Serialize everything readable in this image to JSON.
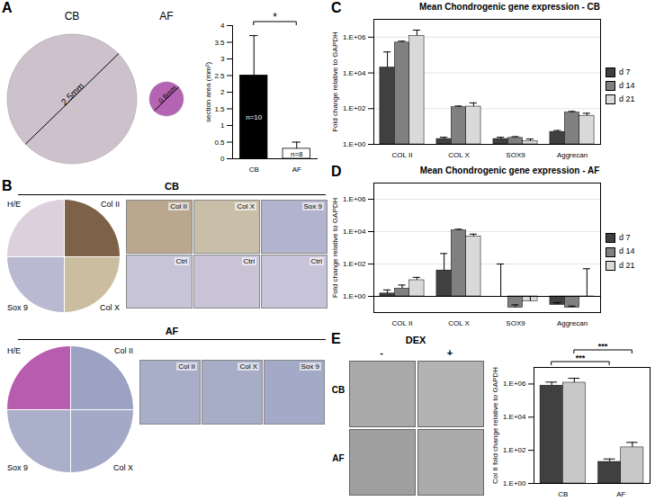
{
  "chart_data": [
    {
      "type": "bar",
      "panel": "A",
      "y_label": "section area (mm²)",
      "categories": [
        "CB",
        "AF"
      ],
      "values": [
        2.5,
        0.3
      ],
      "errors": [
        1.2,
        0.2
      ],
      "colors": [
        "#000000",
        "#ffffff"
      ],
      "bar_labels": [
        "n=10",
        "n=8"
      ],
      "annotations": [
        "*"
      ],
      "ylim": [
        0,
        4
      ],
      "yticks": [
        0,
        0.5,
        1,
        1.5,
        2,
        2.5,
        3,
        3.5,
        4
      ]
    },
    {
      "type": "bar",
      "panel": "C",
      "title": "Mean Chondrogenic gene expression - CB",
      "y_label": "Fold change relative to GAPDH",
      "log": "y",
      "grid": true,
      "legend": "right",
      "categories": [
        "COL II",
        "COL X",
        "SOX9",
        "Aggrecan"
      ],
      "series": [
        {
          "name": "d 7",
          "color": "#404040",
          "values": [
            20000,
            2,
            2,
            5
          ],
          "errors": [
            130000,
            0.5,
            0.5,
            1
          ]
        },
        {
          "name": "d 14",
          "color": "#808080",
          "values": [
            500000,
            120,
            2.3,
            60
          ],
          "errors": [
            100000,
            20,
            0.4,
            10
          ]
        },
        {
          "name": "d 21",
          "color": "#d9d9d9",
          "values": [
            1200000,
            130,
            1.5,
            40
          ],
          "errors": [
            1300000,
            80,
            0.5,
            15
          ]
        }
      ],
      "ylim": [
        1,
        10000000
      ],
      "yticks": [
        {
          "value": 1,
          "label": "1.E+00"
        },
        {
          "value": 100,
          "label": "1.E+02"
        },
        {
          "value": 10000,
          "label": "1.E+04"
        },
        {
          "value": 1000000,
          "label": "1.E+06"
        }
      ]
    },
    {
      "type": "bar",
      "panel": "D",
      "title": "Mean Chondrogenic gene expression - AF",
      "y_label": "Fold change relative to GAPDH",
      "log": "y",
      "grid": true,
      "legend": "right",
      "categories": [
        "COL II",
        "COL X",
        "SOX9",
        "Aggrecan"
      ],
      "series": [
        {
          "name": "d 7",
          "color": "#404040",
          "values": [
            1.5,
            40,
            1,
            0.3
          ],
          "errors": [
            1,
            400,
            99,
            0.1
          ]
        },
        {
          "name": "d 14",
          "color": "#808080",
          "values": [
            3,
            12000,
            0.2,
            0.2
          ],
          "errors": [
            2,
            2000,
            0.1,
            0.05
          ]
        },
        {
          "name": "d 21",
          "color": "#d9d9d9",
          "values": [
            10,
            5000,
            0.5,
            0.95
          ],
          "errors": [
            5,
            2000,
            0.5,
            50
          ]
        }
      ],
      "ylim": [
        0.1,
        10000000
      ],
      "yticks": [
        {
          "value": 1,
          "label": "1.E+00"
        },
        {
          "value": 100,
          "label": "1.E+02"
        },
        {
          "value": 10000,
          "label": "1.E+04"
        },
        {
          "value": 1000000,
          "label": "1.E+06"
        }
      ]
    },
    {
      "type": "bar",
      "panel": "E",
      "y_label": "Col II fold change relative to GAPDH",
      "log": "y",
      "categories": [
        "CB",
        "AF"
      ],
      "series": [
        {
          "name": "-",
          "color": "#404040",
          "values": [
            800000,
            20
          ],
          "errors": [
            500000,
            10
          ]
        },
        {
          "name": "+",
          "color": "#c8c8c8",
          "values": [
            1200000,
            150
          ],
          "errors": [
            1000000,
            150
          ]
        }
      ],
      "annotations": [
        "***",
        "***"
      ],
      "ylim": [
        1,
        10000000
      ],
      "yticks": [
        {
          "value": 1,
          "label": "1.E+00"
        },
        {
          "value": 100,
          "label": "1.E+02"
        },
        {
          "value": 10000,
          "label": "1.E+04"
        },
        {
          "value": 1000000,
          "label": "1.E+06"
        }
      ]
    }
  ],
  "images": {
    "A": {
      "labels": [
        "CB",
        "AF"
      ],
      "scale_labels": [
        "2.5mm",
        "0.6mm"
      ]
    },
    "B": {
      "panel": "B",
      "groups": [
        {
          "name": "CB",
          "overview": [
            "H/E",
            "Col II",
            "Sox 9",
            "Col X"
          ],
          "details": [
            "Col II",
            "Col X",
            "Sox 9",
            "Ctrl",
            "Ctrl",
            "Ctrl"
          ]
        },
        {
          "name": "AF",
          "overview": [
            "H/E",
            "Col II",
            "Sox 9",
            "Col X"
          ],
          "details": [
            "Col II",
            "Col X",
            "Sox 9"
          ]
        }
      ]
    },
    "E": {
      "header": "DEX",
      "rows": [
        "CB",
        "AF"
      ]
    }
  }
}
